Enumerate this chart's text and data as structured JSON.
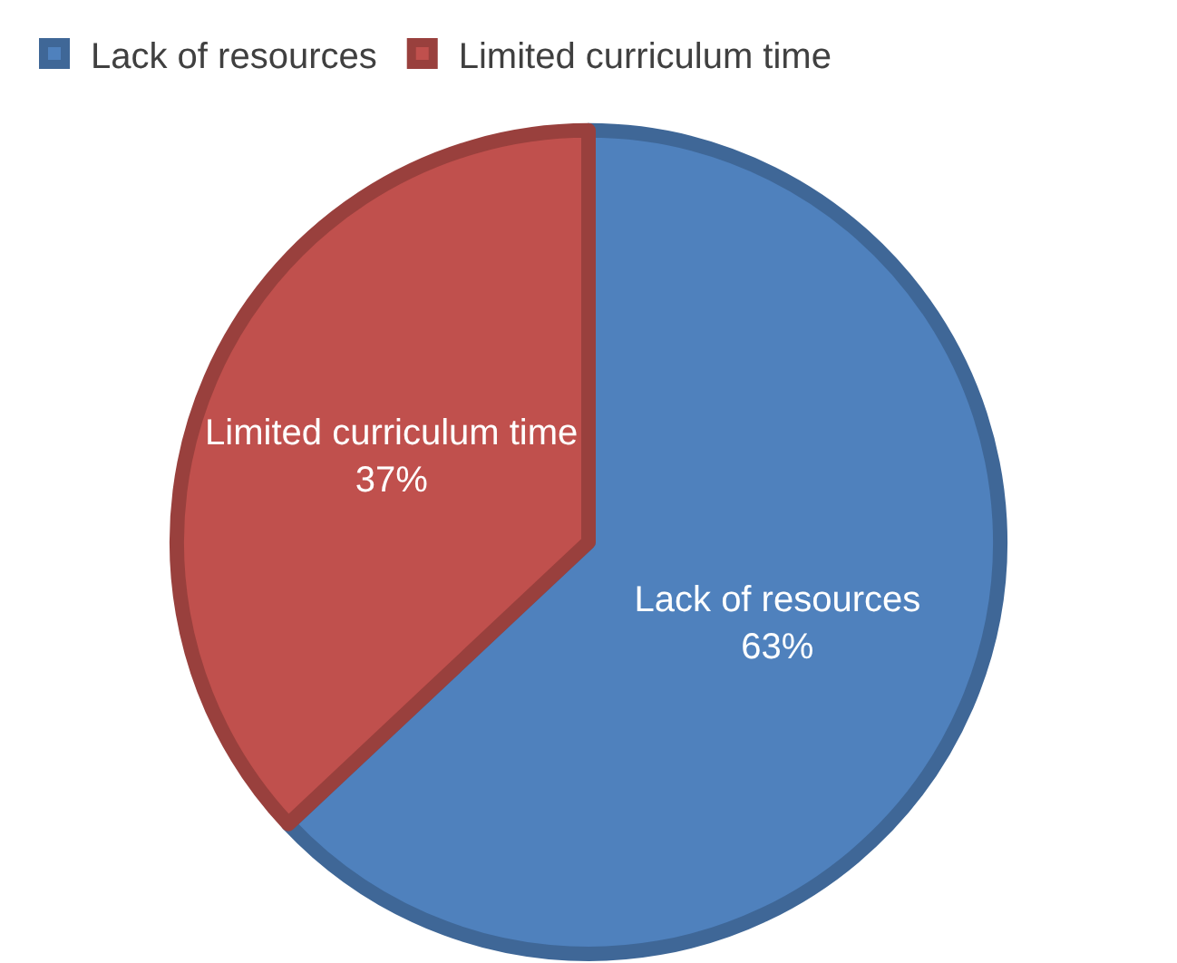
{
  "chart_data": {
    "type": "pie",
    "categories": [
      "Lack of resources",
      "Limited curriculum time"
    ],
    "values": [
      63,
      37
    ],
    "value_labels": [
      "63%",
      "37%"
    ],
    "colors": [
      "#4f81bd",
      "#c0504d"
    ],
    "legend": "top left"
  }
}
